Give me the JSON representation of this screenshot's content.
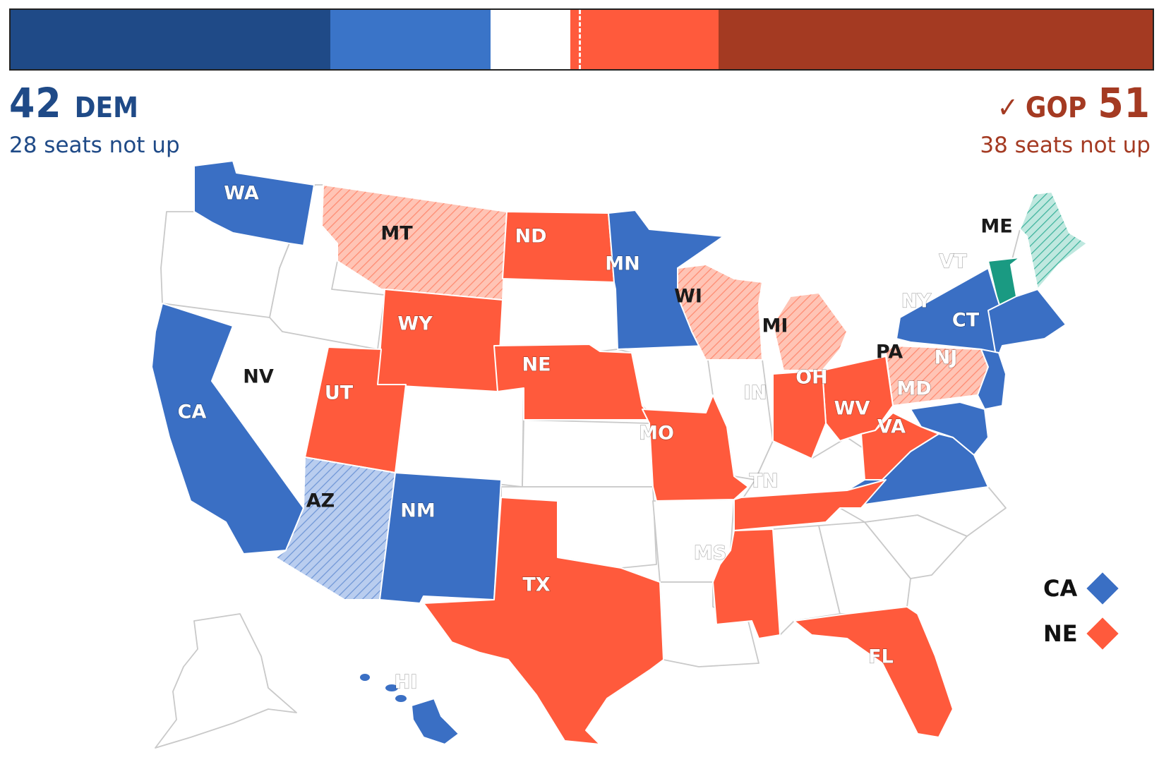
{
  "balance_bar": {
    "segments": [
      {
        "party": "dem_solid",
        "seats": 28,
        "color": "#1f4a87"
      },
      {
        "party": "dem_up",
        "seats": 14,
        "color": "#3a74c8"
      },
      {
        "party": "undecided",
        "seats": 7,
        "color": "#ffffff"
      },
      {
        "party": "gop_up",
        "seats": 13,
        "color": "#ff5a3c"
      },
      {
        "party": "gop_solid",
        "seats": 38,
        "color": "#a43a22"
      }
    ]
  },
  "dem": {
    "count": "42",
    "label": "DEM",
    "not_up": "28 seats not up"
  },
  "gop": {
    "check": "✓",
    "label": "GOP",
    "count": "51",
    "not_up": "38 seats not up"
  },
  "colors": {
    "dem": "#3a6fc4",
    "dem_lean": "#b9cdef",
    "gop": "#ff5a3c",
    "gop_lean": "#ffc4b5",
    "ind": "#1a9a82",
    "ind_lean": "#bfe8df",
    "none": "#ffffff"
  },
  "states": [
    {
      "abbr": "WA",
      "status": "dem",
      "label": "WA"
    },
    {
      "abbr": "MT",
      "status": "gop_lean",
      "label": "MT"
    },
    {
      "abbr": "ND",
      "status": "gop",
      "label": "ND"
    },
    {
      "abbr": "MN",
      "status": "dem",
      "label": "MN"
    },
    {
      "abbr": "ME",
      "status": "ind_lean",
      "label": "ME"
    },
    {
      "abbr": "VT",
      "status": "ind",
      "label": "VT"
    },
    {
      "abbr": "WI",
      "status": "gop_lean",
      "label": "WI"
    },
    {
      "abbr": "MI",
      "status": "gop_lean",
      "label": "MI"
    },
    {
      "abbr": "NY",
      "status": "dem",
      "label": "NY"
    },
    {
      "abbr": "CT",
      "status": "dem",
      "label": "CT"
    },
    {
      "abbr": "WY",
      "status": "gop",
      "label": "WY"
    },
    {
      "abbr": "NV",
      "status": "none",
      "label": "NV"
    },
    {
      "abbr": "NE",
      "status": "gop",
      "label": "NE"
    },
    {
      "abbr": "PA",
      "status": "gop_lean",
      "label": "PA"
    },
    {
      "abbr": "NJ",
      "status": "dem",
      "label": "NJ"
    },
    {
      "abbr": "UT",
      "status": "gop",
      "label": "UT"
    },
    {
      "abbr": "OH",
      "status": "gop",
      "label": "OH"
    },
    {
      "abbr": "IN",
      "status": "gop",
      "label": "IN"
    },
    {
      "abbr": "CA",
      "status": "dem",
      "label": "CA"
    },
    {
      "abbr": "MD",
      "status": "dem",
      "label": "MD"
    },
    {
      "abbr": "WV",
      "status": "gop",
      "label": "WV"
    },
    {
      "abbr": "VA",
      "status": "dem",
      "label": "VA"
    },
    {
      "abbr": "MO",
      "status": "gop",
      "label": "MO"
    },
    {
      "abbr": "TN",
      "status": "gop",
      "label": "TN"
    },
    {
      "abbr": "AZ",
      "status": "dem_lean",
      "label": "AZ"
    },
    {
      "abbr": "NM",
      "status": "dem",
      "label": "NM"
    },
    {
      "abbr": "MS",
      "status": "gop",
      "label": "MS"
    },
    {
      "abbr": "TX",
      "status": "gop",
      "label": "TX"
    },
    {
      "abbr": "FL",
      "status": "gop",
      "label": "FL"
    },
    {
      "abbr": "HI",
      "status": "dem",
      "label": "HI"
    }
  ],
  "legend": [
    {
      "label": "CA",
      "color": "#3a6fc4"
    },
    {
      "label": "NE",
      "color": "#ff5a3c"
    }
  ]
}
